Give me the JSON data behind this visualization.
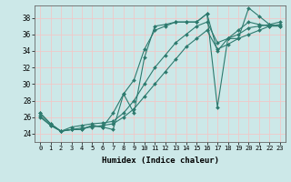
{
  "xlabel": "Humidex (Indice chaleur)",
  "bg_color": "#cce8e8",
  "grid_color": "#f0c8c8",
  "line_color": "#2d7a6e",
  "marker_color": "#2d7a6e",
  "xlim": [
    -0.5,
    23.5
  ],
  "ylim": [
    23.0,
    39.5
  ],
  "xticks": [
    0,
    1,
    2,
    3,
    4,
    5,
    6,
    7,
    8,
    9,
    10,
    11,
    12,
    13,
    14,
    15,
    16,
    17,
    18,
    19,
    20,
    21,
    22,
    23
  ],
  "yticks": [
    24,
    26,
    28,
    30,
    32,
    34,
    36,
    38
  ],
  "lines": [
    {
      "x": [
        0,
        1,
        2,
        3,
        4,
        5,
        6,
        7,
        8,
        9,
        10,
        11,
        12,
        13,
        14,
        15,
        16,
        17,
        18,
        19,
        20,
        21,
        22,
        23
      ],
      "y": [
        26.5,
        25.2,
        24.3,
        24.5,
        24.5,
        25.0,
        24.8,
        24.5,
        28.8,
        26.5,
        33.2,
        37.0,
        37.2,
        37.5,
        37.5,
        37.5,
        38.5,
        27.2,
        35.5,
        35.5,
        39.2,
        38.2,
        37.2,
        37.0
      ]
    },
    {
      "x": [
        0,
        1,
        2,
        3,
        4,
        5,
        6,
        7,
        8,
        9,
        10,
        11,
        12,
        13,
        14,
        15,
        16,
        17,
        18,
        19,
        20,
        21,
        22,
        23
      ],
      "y": [
        26.5,
        25.2,
        24.3,
        24.5,
        24.5,
        25.0,
        24.8,
        26.5,
        28.8,
        30.5,
        34.2,
        36.5,
        37.0,
        37.5,
        37.5,
        37.5,
        38.5,
        34.0,
        35.5,
        36.5,
        37.5,
        37.2,
        37.0,
        37.0
      ]
    },
    {
      "x": [
        0,
        1,
        2,
        3,
        4,
        5,
        6,
        7,
        8,
        9,
        10,
        11,
        12,
        13,
        14,
        15,
        16,
        17,
        18,
        19,
        20,
        21,
        22,
        23
      ],
      "y": [
        26.0,
        25.0,
        24.3,
        24.5,
        24.7,
        24.8,
        25.0,
        25.2,
        26.0,
        27.0,
        28.5,
        30.0,
        31.5,
        33.0,
        34.5,
        35.5,
        36.5,
        34.2,
        34.8,
        35.5,
        36.0,
        36.5,
        37.0,
        37.2
      ]
    },
    {
      "x": [
        0,
        1,
        2,
        3,
        4,
        5,
        6,
        7,
        8,
        9,
        10,
        11,
        12,
        13,
        14,
        15,
        16,
        17,
        18,
        19,
        20,
        21,
        22,
        23
      ],
      "y": [
        26.2,
        25.0,
        24.3,
        24.8,
        25.0,
        25.2,
        25.3,
        25.5,
        26.5,
        28.0,
        30.0,
        32.0,
        33.5,
        35.0,
        36.0,
        37.0,
        37.5,
        35.0,
        35.5,
        36.0,
        36.8,
        37.0,
        37.2,
        37.5
      ]
    }
  ]
}
